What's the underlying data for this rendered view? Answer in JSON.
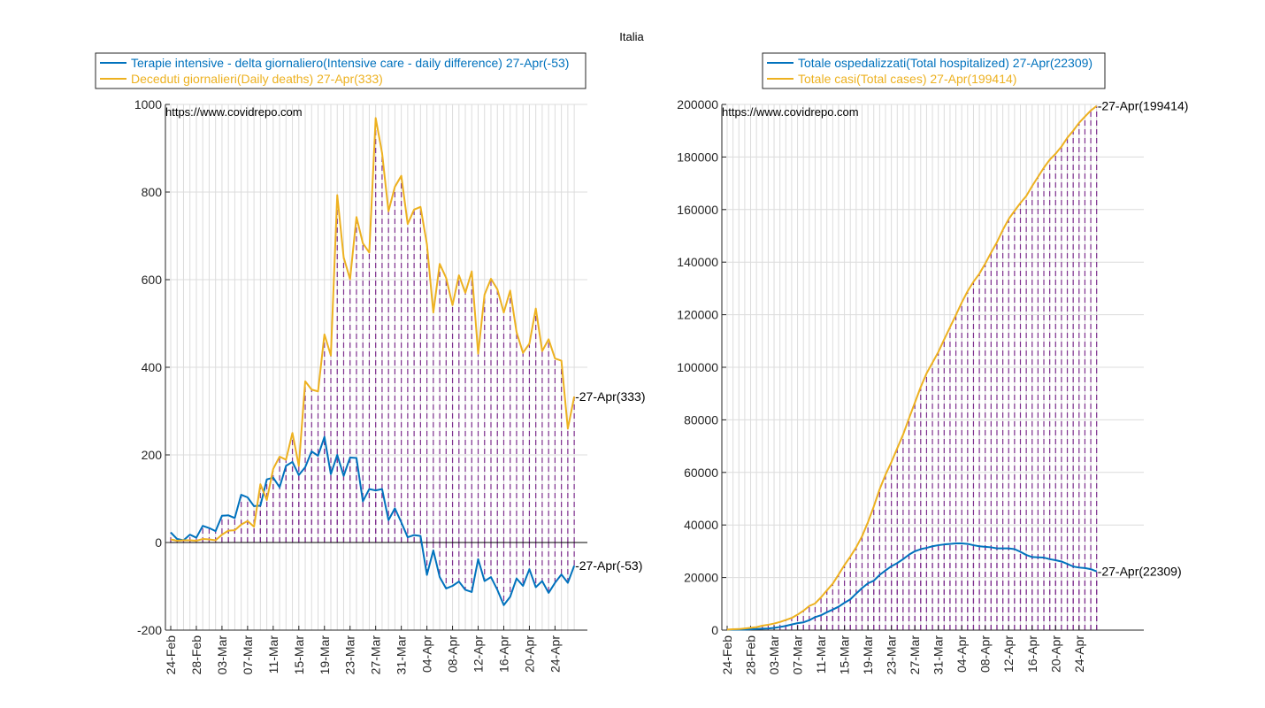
{
  "figure_title": "Italia",
  "chart_data": [
    {
      "type": "line",
      "watermark": "https://www.covidrepo.com",
      "x_labels": [
        "24-Feb",
        "28-Feb",
        "03-Mar",
        "07-Mar",
        "11-Mar",
        "15-Mar",
        "19-Mar",
        "23-Mar",
        "27-Mar",
        "31-Mar",
        "04-Apr",
        "08-Apr",
        "12-Apr",
        "16-Apr",
        "20-Apr",
        "24-Apr"
      ],
      "x_label_step_days": 4,
      "ylim": [
        -200,
        1000
      ],
      "yticks": [
        -200,
        0,
        200,
        400,
        600,
        800,
        1000
      ],
      "grid": true,
      "legend_position": "top",
      "series": [
        {
          "name": "Terapie intensive - delta giornaliero(Intensive care - daily difference) 27-Apr(-53)",
          "end_label": "27-Apr(-53)",
          "color": "#0072BD",
          "values": [
            23,
            8,
            5,
            18,
            11,
            38,
            33,
            26,
            61,
            62,
            56,
            109,
            103,
            83,
            84,
            144,
            148,
            126,
            175,
            184,
            154,
            172,
            208,
            198,
            241,
            156,
            200,
            152,
            194,
            193,
            94,
            122,
            119,
            122,
            51,
            78,
            46,
            12,
            17,
            15,
            -74,
            -18,
            -79,
            -105,
            -99,
            -89,
            -108,
            -113,
            -38,
            -88,
            -79,
            -108,
            -143,
            -124,
            -82,
            -99,
            -61,
            -102,
            -88,
            -115,
            -92,
            -73,
            -92,
            -53
          ]
        },
        {
          "name": "Deceduti giornalieri(Daily deaths) 27-Apr(333)",
          "end_label": "27-Apr(333)",
          "color": "#EDB120",
          "values": [
            7,
            4,
            5,
            5,
            4,
            8,
            7,
            5,
            18,
            27,
            28,
            41,
            49,
            36,
            133,
            97,
            168,
            196,
            189,
            250,
            175,
            368,
            349,
            345,
            475,
            427,
            793,
            651,
            601,
            743,
            683,
            662,
            969,
            889,
            756,
            812,
            837,
            727,
            760,
            766,
            681,
            525,
            636,
            604,
            542,
            610,
            570,
            619,
            431,
            566,
            602,
            578,
            525,
            575,
            480,
            433,
            454,
            534,
            437,
            464,
            420,
            415,
            260,
            333
          ]
        }
      ]
    },
    {
      "type": "line",
      "watermark": "https://www.covidrepo.com",
      "x_labels": [
        "24-Feb",
        "28-Feb",
        "03-Mar",
        "07-Mar",
        "11-Mar",
        "15-Mar",
        "19-Mar",
        "23-Mar",
        "27-Mar",
        "31-Mar",
        "04-Apr",
        "08-Apr",
        "12-Apr",
        "16-Apr",
        "20-Apr",
        "24-Apr"
      ],
      "x_label_step_days": 4,
      "ylim": [
        0,
        200000
      ],
      "yticks": [
        0,
        20000,
        40000,
        60000,
        80000,
        100000,
        120000,
        140000,
        160000,
        180000,
        200000
      ],
      "grid": true,
      "legend_position": "top",
      "series": [
        {
          "name": "Totale ospedalizzati(Total hospitalized) 27-Apr(22309)",
          "end_label": "27-Apr(22309)",
          "color": "#0072BD",
          "values": [
            150,
            160,
            170,
            200,
            300,
            420,
            550,
            650,
            850,
            1200,
            1600,
            2150,
            2650,
            2950,
            3750,
            4950,
            5650,
            6800,
            7800,
            8900,
            10400,
            11700,
            13900,
            16000,
            17800,
            18800,
            21000,
            22700,
            24300,
            25500,
            27000,
            28700,
            30000,
            30800,
            31300,
            31900,
            32300,
            32600,
            32800,
            33000,
            33000,
            32800,
            32300,
            31900,
            31700,
            31500,
            31100,
            31100,
            31100,
            30800,
            29800,
            28600,
            27800,
            27700,
            27600,
            27000,
            26600,
            26100,
            25200,
            24200,
            23800,
            23600,
            23200,
            22309
          ]
        },
        {
          "name": "Totale casi(Total cases) 27-Apr(199414)",
          "end_label": "27-Apr(199414)",
          "color": "#EDB120",
          "values": [
            229,
            322,
            400,
            650,
            888,
            1128,
            1694,
            2036,
            2502,
            3089,
            3858,
            4636,
            5883,
            7375,
            9172,
            10149,
            12462,
            15113,
            17660,
            21157,
            24747,
            27980,
            31506,
            35713,
            41035,
            47021,
            53578,
            59138,
            63927,
            69176,
            74386,
            80539,
            86498,
            92472,
            97689,
            101739,
            105792,
            110574,
            115242,
            119827,
            124632,
            128948,
            132547,
            135586,
            139422,
            143626,
            147577,
            152271,
            156363,
            159516,
            162488,
            165155,
            168941,
            172434,
            175925,
            178972,
            181228,
            183957,
            187327,
            189973,
            192994,
            195351,
            197675,
            199414
          ]
        }
      ]
    }
  ]
}
